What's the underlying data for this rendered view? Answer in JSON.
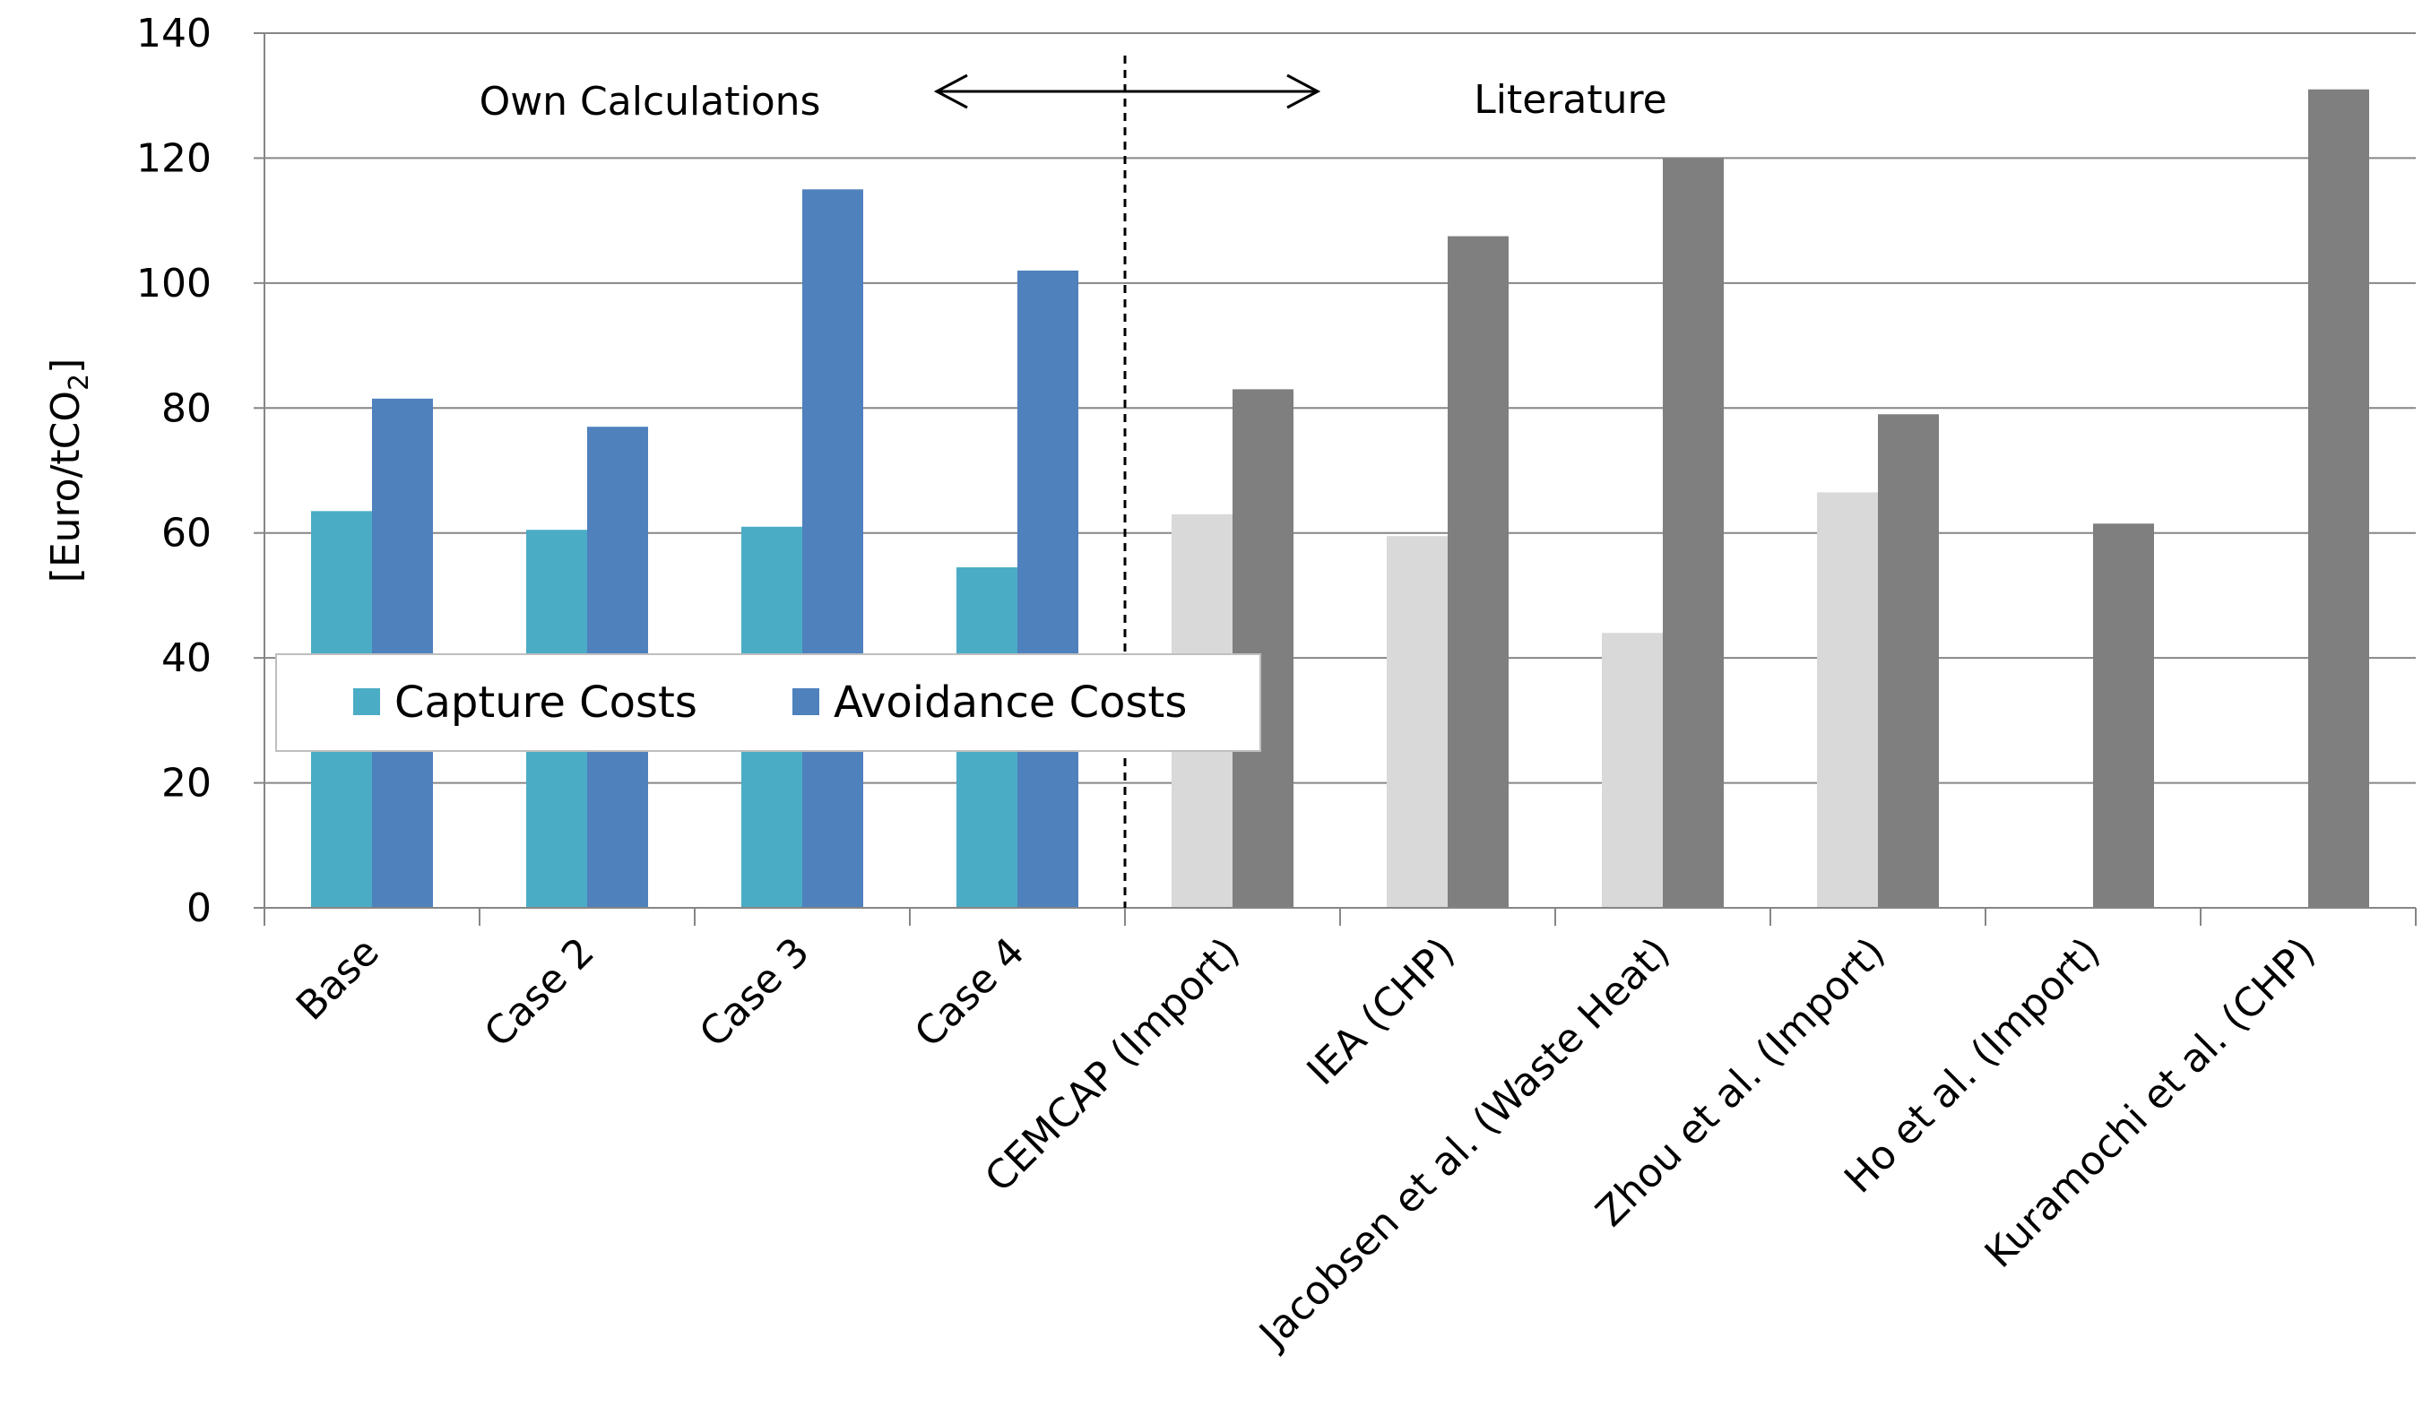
{
  "chart_data": {
    "type": "bar",
    "title": "",
    "xlabel": "",
    "ylabel": "[Euro/tCO2]",
    "ylabel_parts": {
      "main": "[Euro/tCO",
      "sub": "2",
      "end": "]"
    },
    "ylim": [
      0,
      140
    ],
    "yticks": [
      "0",
      "20",
      "40",
      "60",
      "80",
      "100",
      "120",
      "140"
    ],
    "grid": true,
    "categories": [
      "Base",
      "Case 2",
      "Case 3",
      "Case 4",
      "CEMCAP (Import)",
      "IEA (CHP)",
      "Jacobsen et al. (Waste Heat)",
      "Zhou et al. (Import)",
      "Ho et al. (Import)",
      "Kuramochi et al. (CHP)"
    ],
    "series": [
      {
        "name": "Capture Costs",
        "values": [
          63.5,
          60.5,
          61,
          54.5,
          63,
          59.5,
          44,
          66.5,
          null,
          null
        ]
      },
      {
        "name": "Avoidance Costs",
        "values": [
          81.5,
          77,
          115,
          102,
          83,
          107.5,
          120,
          79,
          61.5,
          131
        ]
      }
    ],
    "colors": {
      "capture_own": "#4bacc6",
      "avoidance_own": "#4f81bd",
      "capture_literature": "#d9d9d9",
      "avoidance_literature": "#7f7f7f",
      "grid": "#868686",
      "divider": "#000000"
    },
    "own_calculation_count": 4,
    "annotations": {
      "left_region": "Own Calculations",
      "right_region": "Literature"
    },
    "legend": {
      "position": "lower-left",
      "entries": [
        "Capture Costs",
        "Avoidance Costs"
      ]
    }
  }
}
